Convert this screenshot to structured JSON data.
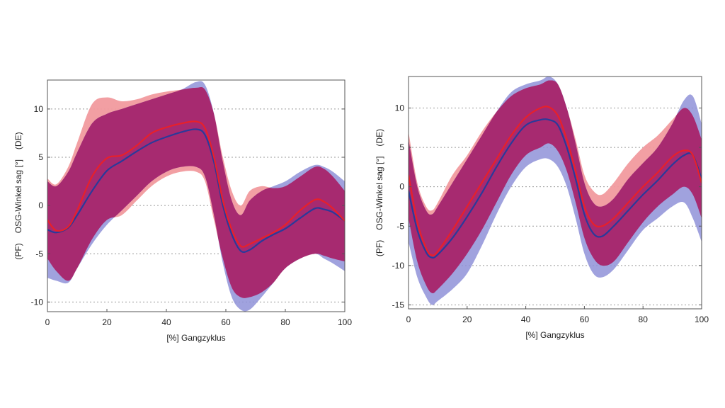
{
  "chart_data": [
    {
      "type": "area",
      "xlabel": "[%] Gangzyklus",
      "ylabel_parts": [
        "(PF)",
        "OSG-Winkel sag [°]",
        "(DE)"
      ],
      "xlim": [
        0,
        100
      ],
      "ylim": [
        -11,
        13
      ],
      "xticks": [
        "0",
        "20",
        "40",
        "60",
        "80",
        "100"
      ],
      "xtick_values": [
        0,
        20,
        40,
        60,
        80,
        100
      ],
      "yticks": [
        "-10",
        "-5",
        "0",
        "5",
        "10"
      ],
      "ytick_values": [
        -10,
        -5,
        0,
        5,
        10
      ],
      "grid": "dotted",
      "series": [
        {
          "name": "red",
          "color": "#e8202a",
          "band_color": "#f19a9e",
          "x": [
            0,
            3,
            7,
            10,
            15,
            20,
            25,
            30,
            35,
            40,
            45,
            50,
            53,
            56,
            59,
            62,
            65,
            68,
            72,
            76,
            80,
            85,
            90,
            93,
            96,
            100
          ],
          "mean": [
            -1.5,
            -2.6,
            -2.2,
            -0.5,
            3.0,
            4.9,
            5.2,
            6.2,
            7.5,
            8.1,
            8.5,
            8.7,
            8.0,
            5.0,
            0.5,
            -2.5,
            -4.2,
            -4.0,
            -3.4,
            -2.8,
            -2.0,
            -0.5,
            0.6,
            0.4,
            -0.3,
            -1.6
          ],
          "upper": [
            2.8,
            2.2,
            4.0,
            6.5,
            10.5,
            11.2,
            10.8,
            11.0,
            11.5,
            11.8,
            12.0,
            12.2,
            12.0,
            9.5,
            5.0,
            1.5,
            0.0,
            1.5,
            2.0,
            1.8,
            2.0,
            3.0,
            4.0,
            3.8,
            3.0,
            1.5
          ],
          "lower": [
            -5.5,
            -6.8,
            -7.8,
            -6.5,
            -3.5,
            -1.5,
            -1.0,
            0.5,
            2.0,
            3.0,
            3.5,
            3.5,
            2.5,
            -1.5,
            -5.5,
            -8.5,
            -9.5,
            -9.5,
            -9.0,
            -8.0,
            -6.5,
            -5.5,
            -5.0,
            -5.2,
            -5.5,
            -5.8
          ]
        },
        {
          "name": "blue",
          "color": "#2a3a9a",
          "band_color": "#8f92d8",
          "x": [
            0,
            3,
            7,
            10,
            15,
            20,
            25,
            30,
            35,
            40,
            45,
            50,
            53,
            56,
            59,
            62,
            65,
            68,
            72,
            76,
            80,
            85,
            90,
            93,
            96,
            100
          ],
          "mean": [
            -2.5,
            -2.8,
            -2.3,
            -1.0,
            1.5,
            3.6,
            4.6,
            5.6,
            6.5,
            7.1,
            7.6,
            7.9,
            7.3,
            4.5,
            0.0,
            -3.0,
            -4.7,
            -4.6,
            -3.7,
            -3.0,
            -2.4,
            -1.3,
            -0.3,
            -0.4,
            -0.7,
            -1.6
          ],
          "upper": [
            2.5,
            2.0,
            3.5,
            5.5,
            8.5,
            9.5,
            10.0,
            10.5,
            11.0,
            11.5,
            12.0,
            12.8,
            12.5,
            9.5,
            4.5,
            0.5,
            -1.0,
            0.5,
            1.5,
            2.0,
            2.5,
            3.5,
            4.2,
            4.0,
            3.5,
            2.5
          ],
          "lower": [
            -7.5,
            -7.8,
            -8.0,
            -6.5,
            -4.0,
            -2.0,
            -0.5,
            1.0,
            2.5,
            3.5,
            4.0,
            4.0,
            3.0,
            -1.0,
            -6.0,
            -9.5,
            -10.8,
            -10.8,
            -9.5,
            -8.0,
            -6.5,
            -5.5,
            -5.0,
            -5.5,
            -6.0,
            -6.8
          ]
        }
      ]
    },
    {
      "type": "area",
      "xlabel": "[%] Gangzyklus",
      "ylabel_parts": [
        "(PF)",
        "OSG-Winkel sag [°]",
        "(DE)"
      ],
      "xlim": [
        0,
        100
      ],
      "ylim": [
        -15.5,
        14
      ],
      "xticks": [
        "0",
        "20",
        "40",
        "60",
        "80",
        "100"
      ],
      "xtick_values": [
        0,
        20,
        40,
        60,
        80,
        100
      ],
      "yticks": [
        "-15",
        "-10",
        "-5",
        "0",
        "5",
        "10"
      ],
      "ytick_values": [
        -15,
        -10,
        -5,
        0,
        5,
        10
      ],
      "grid": "dotted",
      "series": [
        {
          "name": "red",
          "color": "#e8202a",
          "band_color": "#f19a9e",
          "x": [
            0,
            3,
            6,
            8,
            10,
            15,
            20,
            25,
            30,
            35,
            40,
            45,
            48,
            51,
            54,
            57,
            60,
            63,
            66,
            70,
            75,
            80,
            85,
            90,
            94,
            97,
            100
          ],
          "mean": [
            1.5,
            -4.5,
            -7.8,
            -8.7,
            -8.2,
            -5.5,
            -2.5,
            0.5,
            3.5,
            6.5,
            8.8,
            10.0,
            10.1,
            9.0,
            6.0,
            2.0,
            -2.5,
            -4.7,
            -5.0,
            -4.0,
            -2.0,
            0.0,
            1.8,
            3.8,
            4.6,
            4.0,
            0.5
          ],
          "upper": [
            7.0,
            0.5,
            -2.5,
            -3.0,
            -2.0,
            1.5,
            4.0,
            7.0,
            9.5,
            11.5,
            12.5,
            13.0,
            13.5,
            13.0,
            10.0,
            6.0,
            1.5,
            -0.5,
            -1.0,
            0.5,
            3.0,
            5.0,
            6.5,
            8.5,
            10.0,
            9.0,
            6.0
          ],
          "lower": [
            -4.0,
            -9.5,
            -12.5,
            -13.5,
            -13.0,
            -11.0,
            -8.5,
            -5.5,
            -2.0,
            1.5,
            4.0,
            5.0,
            5.5,
            4.5,
            2.0,
            -2.0,
            -6.5,
            -9.0,
            -10.0,
            -9.5,
            -7.0,
            -4.5,
            -2.5,
            -1.0,
            0.0,
            -1.0,
            -4.0
          ]
        },
        {
          "name": "blue",
          "color": "#2a3a9a",
          "band_color": "#8f92d8",
          "x": [
            0,
            3,
            6,
            8,
            10,
            15,
            20,
            25,
            30,
            35,
            40,
            45,
            48,
            51,
            54,
            57,
            60,
            63,
            66,
            70,
            75,
            80,
            85,
            90,
            94,
            97,
            100
          ],
          "mean": [
            -0.5,
            -5.5,
            -8.3,
            -9.0,
            -8.6,
            -6.5,
            -3.8,
            -0.8,
            2.5,
            5.5,
            7.8,
            8.5,
            8.5,
            7.8,
            5.0,
            1.0,
            -3.5,
            -5.9,
            -6.3,
            -5.0,
            -3.0,
            -1.0,
            0.8,
            2.8,
            4.0,
            4.0,
            1.0
          ],
          "upper": [
            6.0,
            0.0,
            -3.0,
            -3.5,
            -2.5,
            0.5,
            3.5,
            6.5,
            9.5,
            12.0,
            13.0,
            13.5,
            14.0,
            13.0,
            10.0,
            5.5,
            0.5,
            -2.0,
            -2.5,
            -1.5,
            1.0,
            3.0,
            5.0,
            8.0,
            11.0,
            11.5,
            8.0
          ],
          "lower": [
            -7.0,
            -11.5,
            -14.0,
            -15.0,
            -14.5,
            -13.0,
            -11.0,
            -7.5,
            -3.5,
            0.0,
            2.5,
            3.5,
            3.5,
            2.5,
            0.0,
            -4.0,
            -8.5,
            -11.0,
            -11.5,
            -10.5,
            -8.0,
            -5.5,
            -4.0,
            -2.5,
            -2.0,
            -4.0,
            -7.0
          ]
        }
      ]
    }
  ]
}
